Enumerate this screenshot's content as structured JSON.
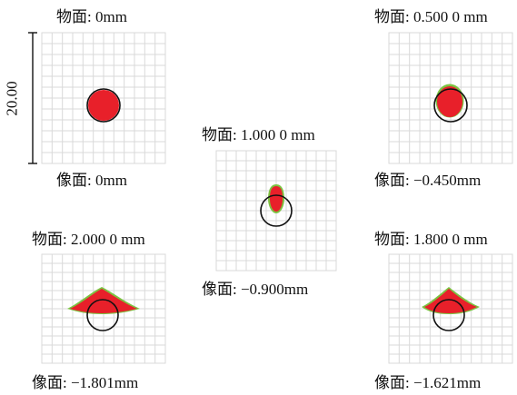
{
  "scale_bar": {
    "label": "20.00"
  },
  "panels": [
    {
      "id": "p1",
      "object_label": "物面: 0mm",
      "image_label": "像面: 0mm"
    },
    {
      "id": "p2",
      "object_label": "物面: 0.500 0 mm",
      "image_label": "像面: −0.450mm"
    },
    {
      "id": "p3",
      "object_label": "物面: 1.000 0 mm",
      "image_label": "像面: −0.900mm"
    },
    {
      "id": "p4",
      "object_label": "物面: 2.000 0 mm",
      "image_label": "像面: −1.801mm"
    },
    {
      "id": "p5",
      "object_label": "物面: 1.800 0 mm",
      "image_label": "像面: −1.621mm"
    }
  ],
  "colors": {
    "spot": "#e8202a",
    "spot_edge": "#7cc242",
    "grid": "#d9d9d9",
    "circle": "#111111"
  }
}
